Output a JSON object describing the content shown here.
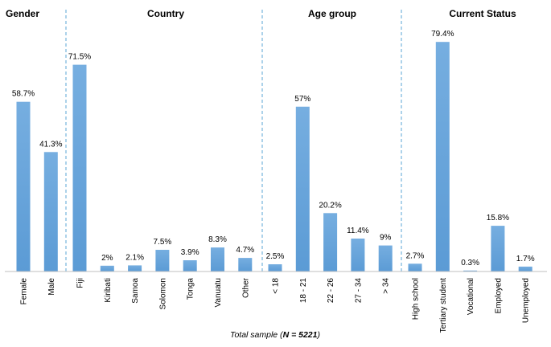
{
  "chart_data": {
    "type": "bar",
    "ylim": [
      0,
      100
    ],
    "bar_color": "#5b9bd5",
    "groups": [
      {
        "title": "Gender",
        "categories": [
          "Female",
          "Male"
        ],
        "values": [
          58.7,
          41.3
        ],
        "labels": [
          "58.7%",
          "41.3%"
        ]
      },
      {
        "title": "Country",
        "categories": [
          "Fiji",
          "Kiribati",
          "Samoa",
          "Solomon",
          "Tonga",
          "Vanuatu",
          "Other"
        ],
        "values": [
          71.5,
          2,
          2.1,
          7.5,
          3.9,
          8.3,
          4.7
        ],
        "labels": [
          "71.5%",
          "2%",
          "2.1%",
          "7.5%",
          "3.9%",
          "8.3%",
          "4.7%"
        ]
      },
      {
        "title": "Age group",
        "categories": [
          "< 18",
          "18 - 21",
          "22 - 26",
          "27 - 34",
          "> 34"
        ],
        "values": [
          2.5,
          57,
          20.2,
          11.4,
          9
        ],
        "labels": [
          "2.5%",
          "57%",
          "20.2%",
          "11.4%",
          "9%"
        ]
      },
      {
        "title": "Current Status",
        "categories": [
          "High school",
          "Tertiary student",
          "Vocational",
          "Employed",
          "Unemployed"
        ],
        "values": [
          2.7,
          79.4,
          0.3,
          15.8,
          1.7
        ],
        "labels": [
          "2.7%",
          "79.4%",
          "0.3%",
          "15.8%",
          "1.7%"
        ]
      }
    ],
    "caption": {
      "prefix": "Total sample (",
      "bold": "N = 5221",
      "suffix": ")"
    }
  }
}
